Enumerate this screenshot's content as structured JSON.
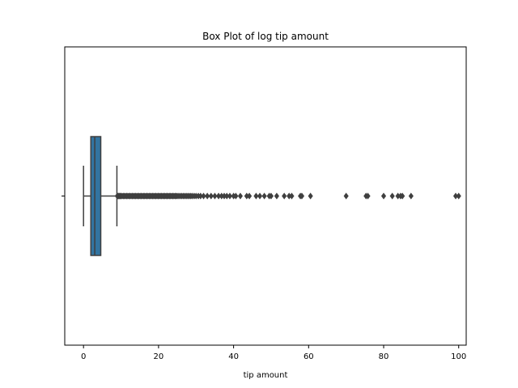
{
  "chart_data": {
    "type": "box",
    "title": "Box Plot of log tip amount",
    "xlabel": "tip amount",
    "ylabel": "",
    "xlim": [
      -5,
      102
    ],
    "xticks": [
      0,
      20,
      40,
      60,
      80,
      100
    ],
    "xtick_labels": [
      "0",
      "20",
      "40",
      "60",
      "80",
      "100"
    ],
    "box": {
      "whisker_low": 0.0,
      "q1": 1.95,
      "median": 3.0,
      "q3": 4.6,
      "whisker_high": 8.9
    },
    "box_color": "#3274a1",
    "line_color": "#3f3f3f",
    "outliers": [
      9.0,
      9.2,
      9.4,
      9.6,
      9.8,
      10.0,
      10.3,
      10.6,
      10.9,
      11.2,
      11.5,
      11.8,
      12.1,
      12.4,
      12.7,
      13.0,
      13.3,
      13.6,
      13.9,
      14.2,
      14.5,
      14.8,
      15.1,
      15.4,
      15.7,
      16.0,
      16.3,
      16.6,
      16.9,
      17.2,
      17.5,
      17.8,
      18.1,
      18.4,
      18.7,
      19.0,
      19.3,
      19.6,
      19.9,
      20.2,
      20.5,
      20.8,
      21.1,
      21.4,
      21.7,
      22.0,
      22.3,
      22.6,
      22.9,
      23.2,
      23.5,
      23.8,
      24.1,
      24.4,
      24.7,
      25.0,
      25.4,
      25.8,
      26.2,
      26.6,
      27.0,
      27.4,
      27.8,
      28.2,
      28.6,
      29.0,
      29.5,
      30.0,
      30.6,
      31.2,
      32.0,
      33.0,
      34.0,
      35.0,
      36.0,
      36.8,
      37.5,
      38.2,
      39.0,
      40.0,
      40.6,
      41.8,
      43.5,
      44.2,
      46.0,
      47.0,
      48.2,
      49.5,
      50.0,
      51.5,
      53.5,
      54.8,
      55.5,
      57.8,
      58.2,
      60.5,
      70.0,
      75.3,
      75.8,
      80.0,
      82.3,
      83.8,
      84.5,
      85.0,
      87.3,
      99.2,
      100.0
    ]
  }
}
